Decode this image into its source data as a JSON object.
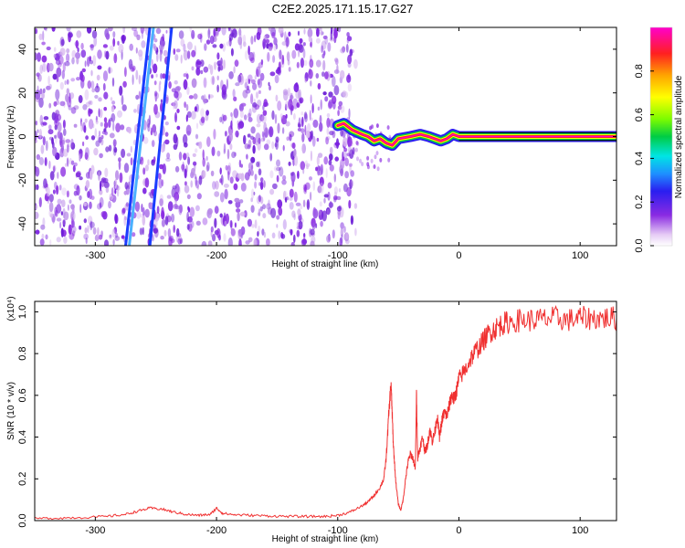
{
  "title": "C2E2.2025.171.15.17.G27",
  "chart_data": [
    {
      "type": "heatmap",
      "title": "C2E2.2025.171.15.17.G27",
      "xlabel": "Height of straight line (km)",
      "ylabel": "Frequency (Hz)",
      "xlim": [
        -350,
        130
      ],
      "ylim": [
        -50,
        50
      ],
      "x_ticks": [
        -300,
        -200,
        -100,
        0,
        100
      ],
      "y_ticks": [
        -40,
        -20,
        0,
        20,
        40
      ],
      "colorbar": {
        "label": "Normalized spectral amplitude",
        "range": [
          0,
          1
        ],
        "ticks": [
          0.0,
          0.2,
          0.4,
          0.6,
          0.8
        ],
        "colors": [
          "#ffffff",
          "#d8b8f0",
          "#8a2be2",
          "#3a1ef0",
          "#1e90ff",
          "#00e5e5",
          "#00cc44",
          "#7cfc00",
          "#ffff00",
          "#ffa500",
          "#ff2020",
          "#ff00cc"
        ]
      },
      "noise_region": {
        "x_start": -350,
        "x_end": -85
      },
      "streaks": [
        {
          "x_bottom": -275,
          "x_top": -255,
          "color": "#1a3cff"
        },
        {
          "x_bottom": -255,
          "x_top": -237,
          "color": "#1a3cff"
        },
        {
          "x_bottom": -272,
          "x_top": -252,
          "color": "#4ab0ff"
        }
      ],
      "tone_ridge": {
        "x": [
          -100,
          -95,
          -88,
          -80,
          -75,
          -70,
          -65,
          -60,
          -55,
          -50,
          -40,
          -32,
          -25,
          -20,
          -15,
          -10,
          -5,
          0,
          130
        ],
        "y": [
          5,
          6,
          3,
          1,
          0,
          -2,
          -1,
          -3,
          -4,
          -1,
          0,
          1,
          0,
          -1,
          -2,
          -1,
          1,
          0,
          0
        ]
      }
    },
    {
      "type": "line",
      "xlabel": "Height of straight line (km)",
      "ylabel": "SNR (10 * v/v)",
      "y_scale_label": "(x10⁴)",
      "xlim": [
        -350,
        130
      ],
      "ylim": [
        0,
        1.05
      ],
      "x_ticks": [
        -300,
        -200,
        -100,
        0,
        100
      ],
      "y_ticks": [
        0.0,
        0.2,
        0.4,
        0.6,
        0.8,
        1.0
      ],
      "series": [
        {
          "color": "#f03030",
          "x": [
            -350,
            -330,
            -310,
            -290,
            -275,
            -265,
            -255,
            -245,
            -235,
            -225,
            -215,
            -205,
            -200,
            -195,
            -185,
            -170,
            -155,
            -140,
            -125,
            -110,
            -100,
            -90,
            -80,
            -75,
            -70,
            -65,
            -62,
            -60,
            -58,
            -56,
            -55,
            -54,
            -52,
            -50,
            -48,
            -46,
            -44,
            -42,
            -40,
            -38,
            -36,
            -35,
            -34,
            -32,
            -30,
            -28,
            -26,
            -24,
            -22,
            -20,
            -18,
            -16,
            -14,
            -12,
            -10,
            -8,
            -6,
            -4,
            -2,
            0,
            5,
            10,
            15,
            20,
            25,
            30,
            35,
            40,
            50,
            60,
            70,
            80,
            90,
            100,
            110,
            120,
            130
          ],
          "y": [
            0.01,
            0.012,
            0.015,
            0.02,
            0.03,
            0.045,
            0.06,
            0.055,
            0.04,
            0.03,
            0.025,
            0.03,
            0.06,
            0.035,
            0.028,
            0.025,
            0.022,
            0.02,
            0.02,
            0.02,
            0.025,
            0.04,
            0.07,
            0.09,
            0.12,
            0.16,
            0.2,
            0.3,
            0.5,
            0.66,
            0.5,
            0.35,
            0.18,
            0.08,
            0.05,
            0.1,
            0.2,
            0.28,
            0.32,
            0.3,
            0.25,
            0.6,
            0.3,
            0.35,
            0.4,
            0.33,
            0.36,
            0.44,
            0.38,
            0.42,
            0.5,
            0.4,
            0.48,
            0.52,
            0.5,
            0.55,
            0.6,
            0.58,
            0.62,
            0.68,
            0.72,
            0.78,
            0.82,
            0.86,
            0.9,
            0.92,
            0.94,
            0.95,
            0.96,
            0.96,
            0.965,
            0.97,
            0.96,
            0.97,
            0.97,
            0.97,
            0.97
          ]
        }
      ]
    }
  ]
}
